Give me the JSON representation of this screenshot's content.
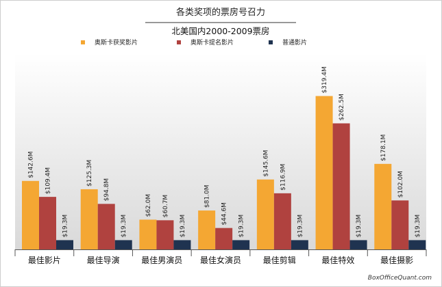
{
  "chart_data": {
    "type": "bar",
    "title": "各类奖项的票房号召力",
    "subtitle": "北美国内2000-2009票房",
    "xlabel": "",
    "ylabel": "",
    "ylim": [
      0,
      360
    ],
    "grid": false,
    "legend_position": "top",
    "categories": [
      "最佳影片",
      "最佳导演",
      "最佳男演员",
      "最佳女演员",
      "最佳剪辑",
      "最佳特效",
      "最佳摄影"
    ],
    "series": [
      {
        "name": "奥斯卡获奖影片",
        "color": "#f4a733",
        "values": [
          142.6,
          125.3,
          62.0,
          81.0,
          145.6,
          319.4,
          178.1
        ],
        "labels": [
          "$142.6M",
          "$125.3M",
          "$62.0M",
          "$81.0M",
          "$145.6M",
          "$319.4M",
          "$178.1M"
        ]
      },
      {
        "name": "奥斯卡提名影片",
        "color": "#b0423f",
        "values": [
          109.4,
          94.8,
          60.7,
          44.6,
          116.9,
          262.5,
          102.0
        ],
        "labels": [
          "$109.4M",
          "$94.8M",
          "$60.7M",
          "$44.6M",
          "$116.9M",
          "$262.5M",
          "$102.0M"
        ]
      },
      {
        "name": "普通影片",
        "color": "#1f3350",
        "values": [
          19.3,
          19.3,
          19.3,
          19.3,
          19.3,
          19.3,
          19.3
        ],
        "labels": [
          "$19.3M",
          "$19.3M",
          "$19.3M",
          "$19.3M",
          "$19.3M",
          "$19.3M",
          "$19.3M"
        ]
      }
    ],
    "credit": "BoxOfficeQuant.com"
  }
}
